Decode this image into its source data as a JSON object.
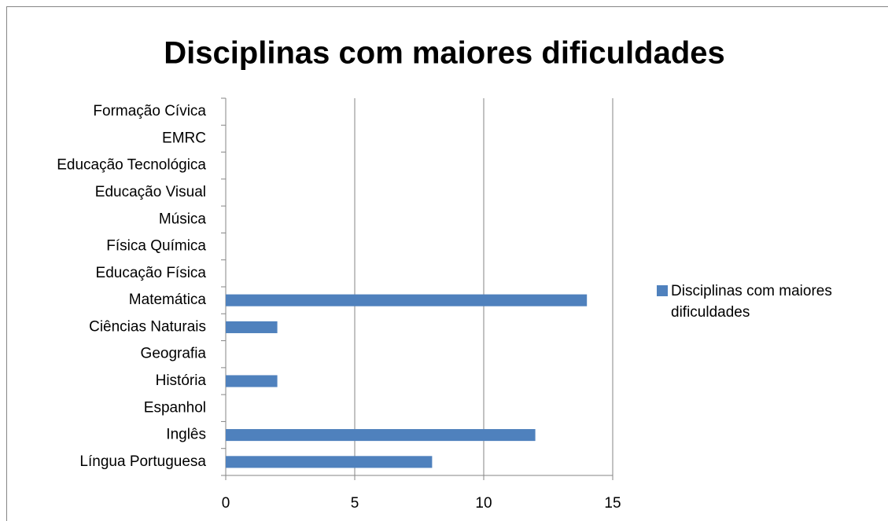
{
  "chart_data": {
    "type": "bar",
    "orientation": "horizontal",
    "title": "Disciplinas com maiores dificuldades",
    "categories": [
      "Língua Portuguesa",
      "Inglês",
      "Espanhol",
      "História",
      "Geografia",
      "Ciências Naturais",
      "Matemática",
      "Educação Física",
      "Física Química",
      "Música",
      "Educação Visual",
      "Educação Tecnológica",
      "EMRC",
      "Formação Cívica"
    ],
    "series": [
      {
        "name": "Disciplinas com maiores dificuldades",
        "color": "#4f81bd",
        "values": [
          8,
          12,
          0,
          2,
          0,
          2,
          14,
          0,
          0,
          0,
          0,
          0,
          0,
          0
        ]
      }
    ],
    "xlim": [
      0,
      15
    ],
    "xticks": [
      0,
      5,
      10,
      15
    ],
    "grid": true,
    "legend": "right"
  }
}
